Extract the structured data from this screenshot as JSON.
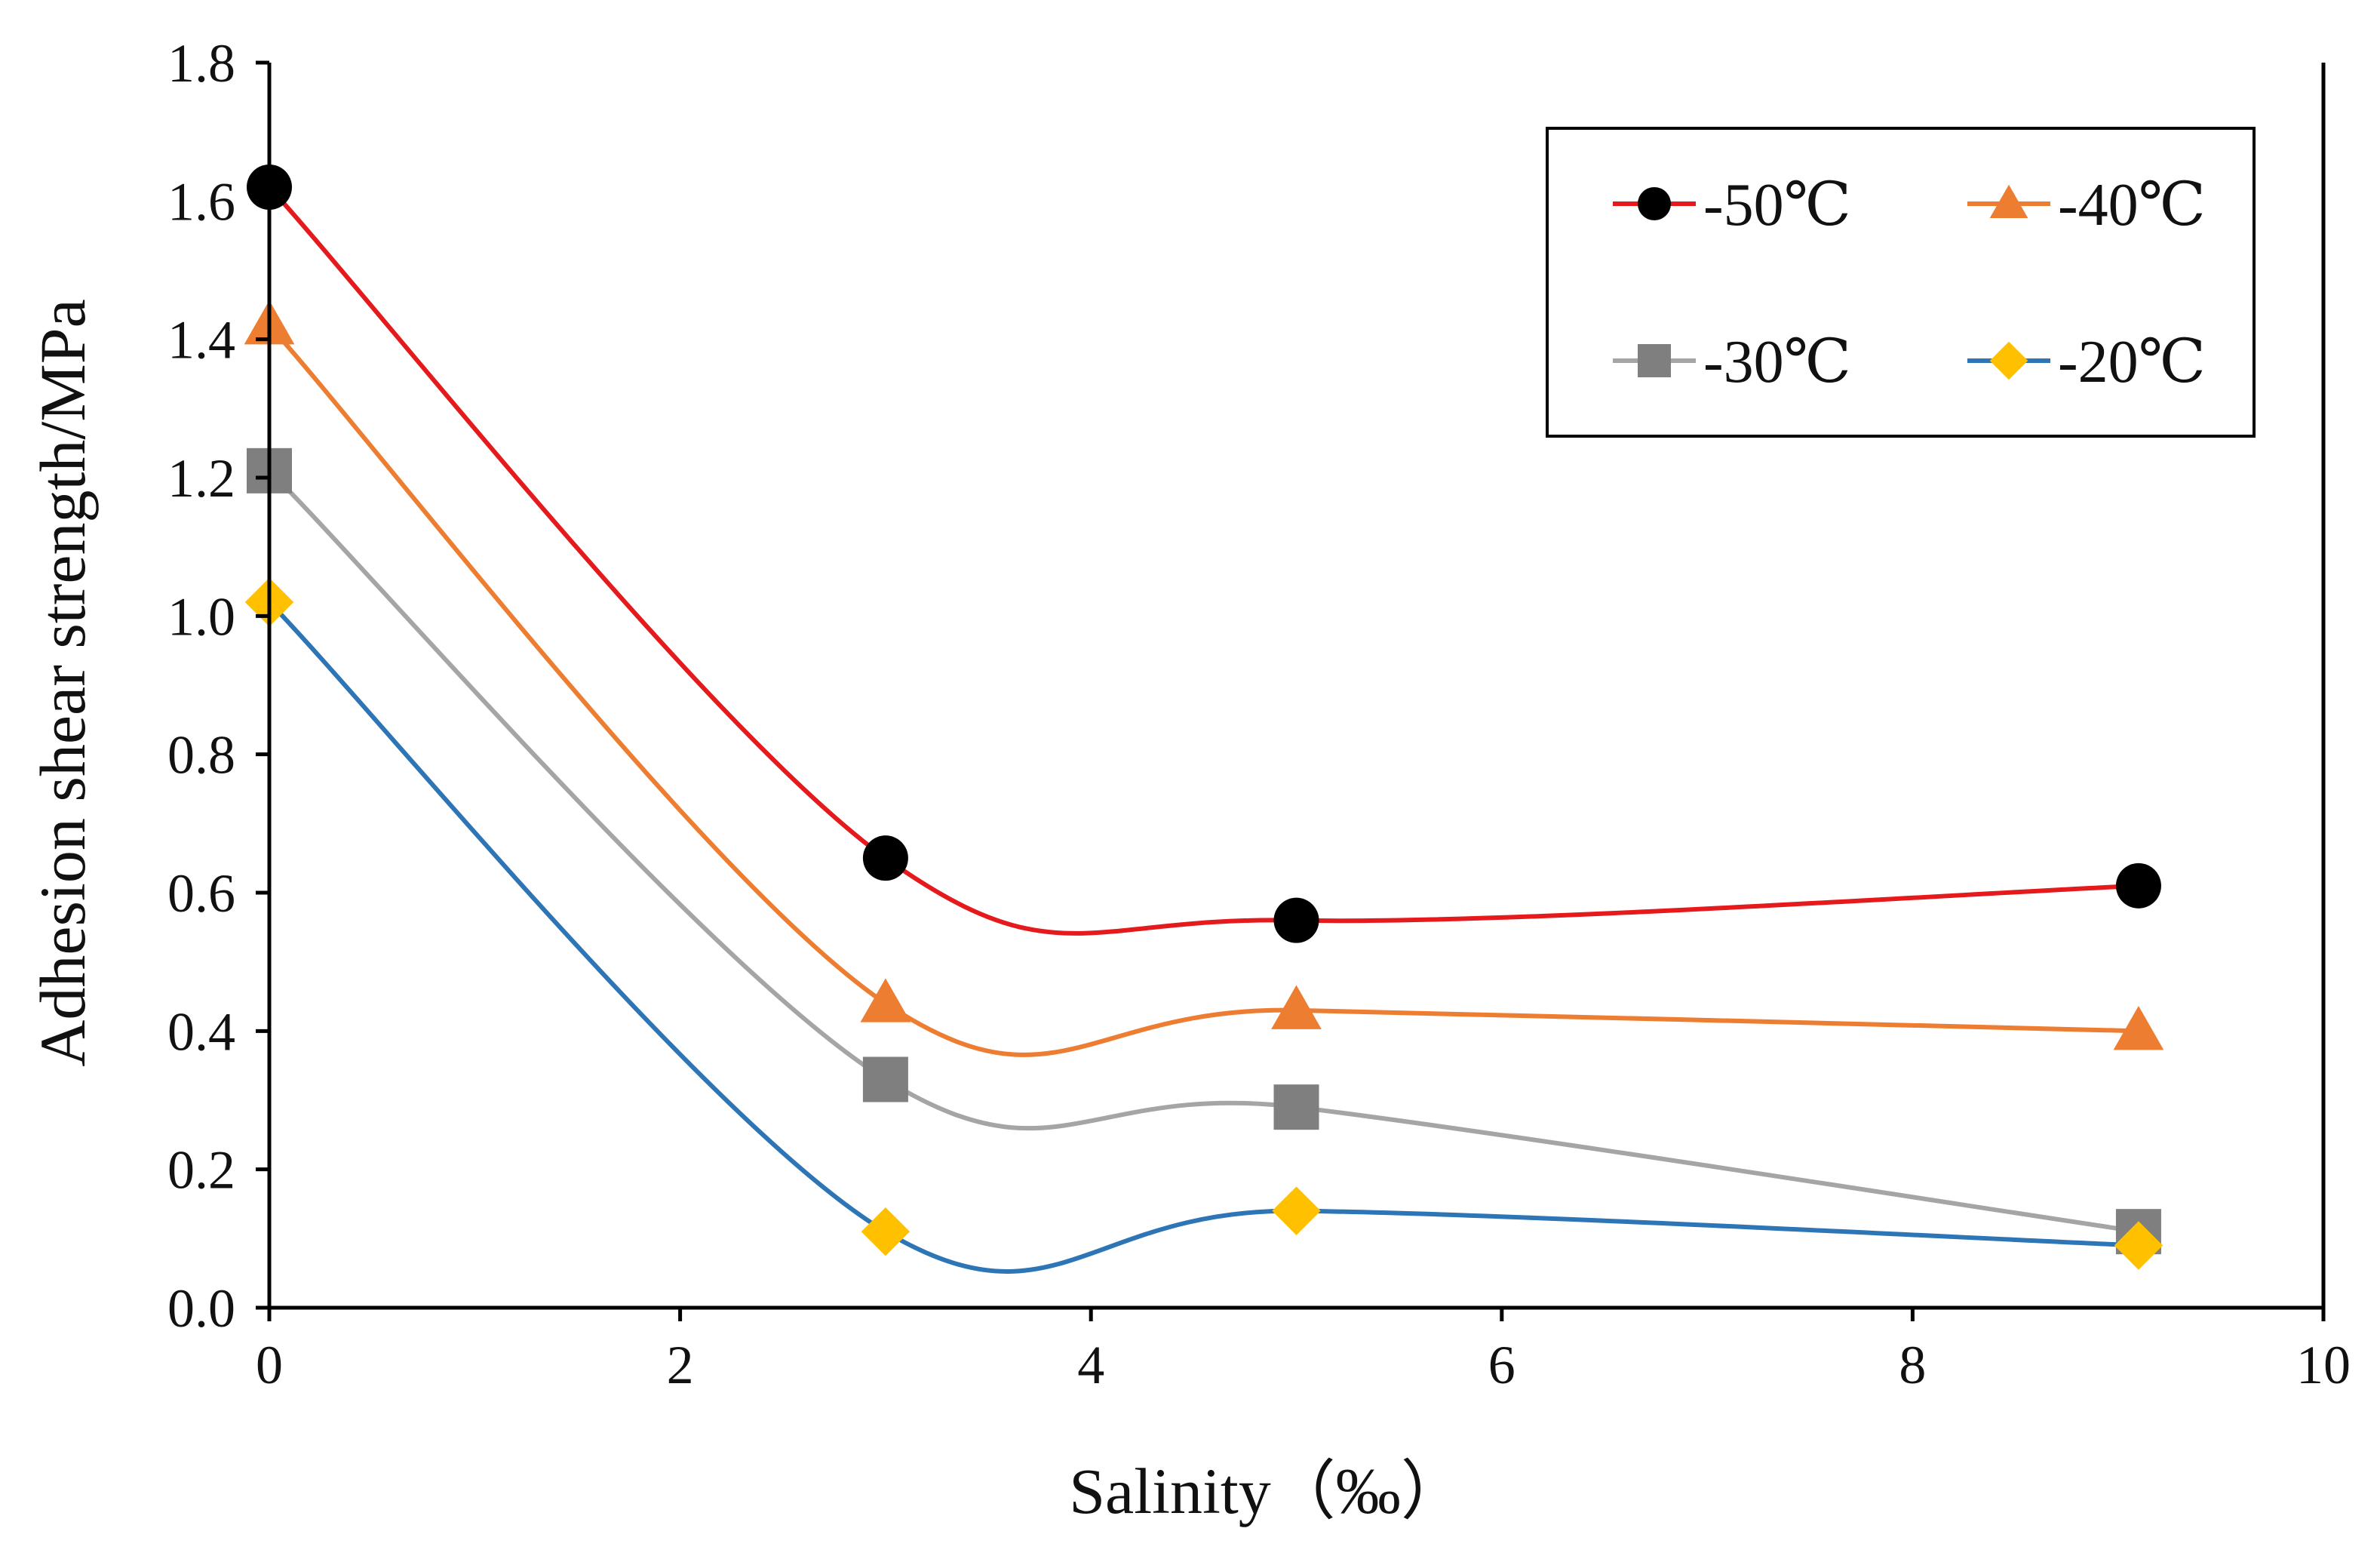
{
  "chart_data": {
    "type": "line",
    "title": "",
    "xlabel": "Salinity（‰）",
    "ylabel": "Adhesion shear strength/MPa",
    "xlim": [
      0,
      10
    ],
    "ylim": [
      0,
      1.8
    ],
    "xticks": [
      "0",
      "2",
      "4",
      "6",
      "8",
      "10"
    ],
    "yticks": [
      "0.0",
      "0.2",
      "0.4",
      "0.6",
      "0.8",
      "1.0",
      "1.2",
      "1.4",
      "1.6",
      "1.8"
    ],
    "grid": false,
    "smooth": true,
    "legend_position": "top-right",
    "x": [
      0,
      3,
      5,
      9.1
    ],
    "series": [
      {
        "name": "-50℃",
        "marker": "circle",
        "line_color": "#e41a1c",
        "marker_color": "#000000",
        "values": [
          1.62,
          0.65,
          0.56,
          0.61
        ]
      },
      {
        "name": "-40℃",
        "marker": "triangle",
        "line_color": "#ed7d31",
        "marker_color": "#ed7d31",
        "values": [
          1.42,
          0.44,
          0.43,
          0.4
        ]
      },
      {
        "name": "-30℃",
        "marker": "square",
        "line_color": "#a5a5a5",
        "marker_color": "#7f7f7f",
        "values": [
          1.21,
          0.33,
          0.29,
          0.11
        ]
      },
      {
        "name": "-20℃",
        "marker": "diamond",
        "line_color": "#2e75b6",
        "marker_color": "#ffc000",
        "values": [
          1.02,
          0.11,
          0.14,
          0.09
        ]
      }
    ]
  }
}
